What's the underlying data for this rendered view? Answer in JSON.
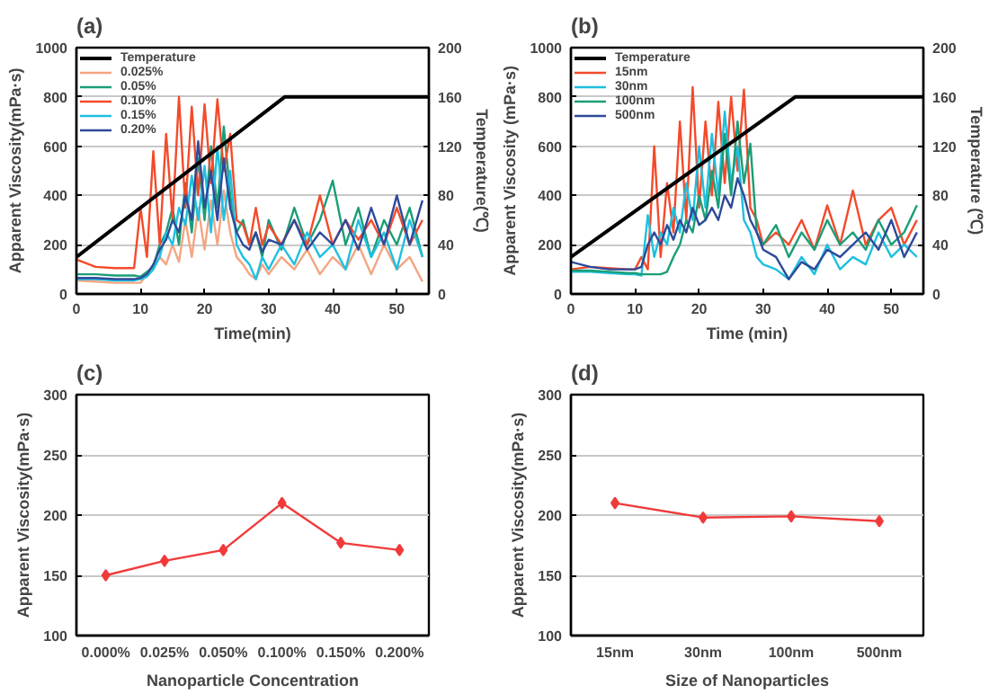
{
  "chart_data": [
    {
      "type": "line",
      "title": "(a)",
      "xlabel": "Time(min)",
      "ylabel": "Apparent Viscosity(mPa·s)",
      "y2label": "Temperature(℃)",
      "xlim": [
        0,
        55
      ],
      "xticks": [
        0,
        10,
        20,
        30,
        40,
        50
      ],
      "ylim": [
        0,
        1000
      ],
      "yticks": [
        0,
        200,
        400,
        600,
        800,
        1000
      ],
      "y2lim": [
        0,
        200
      ],
      "y2ticks": [
        0,
        40,
        80,
        120,
        160,
        200
      ],
      "grid": "y",
      "legend": "top left",
      "x": [
        0,
        3,
        6,
        9,
        10,
        11,
        12,
        13,
        14,
        15,
        16,
        17,
        18,
        19,
        20,
        21,
        22,
        23,
        24,
        25,
        26,
        27,
        28,
        29,
        30,
        32,
        34,
        36,
        38,
        40,
        42,
        44,
        46,
        48,
        50,
        52,
        54
      ],
      "series": [
        {
          "name": "Temperature",
          "color": "#000000",
          "axis": "y2",
          "x": [
            0,
            32.5,
            55
          ],
          "values": [
            30,
            160,
            160
          ]
        },
        {
          "name": "0.025%",
          "color": "#f4a582",
          "values": [
            55,
            50,
            45,
            45,
            45,
            80,
            null,
            150,
            120,
            200,
            130,
            300,
            150,
            350,
            180,
            380,
            200,
            420,
            250,
            150,
            120,
            80,
            60,
            120,
            80,
            150,
            100,
            180,
            80,
            150,
            100,
            200,
            80,
            200,
            100,
            150,
            50
          ]
        },
        {
          "name": "0.05%",
          "color": "#1a9e77",
          "values": [
            80,
            80,
            75,
            75,
            70,
            90,
            110,
            200,
            250,
            350,
            200,
            450,
            250,
            550,
            300,
            600,
            350,
            680,
            400,
            250,
            300,
            200,
            250,
            150,
            300,
            180,
            350,
            200,
            300,
            460,
            200,
            350,
            150,
            300,
            200,
            350,
            150
          ]
        },
        {
          "name": "0.10%",
          "color": "#f44a2a",
          "values": [
            140,
            110,
            105,
            105,
            350,
            150,
            580,
            200,
            650,
            300,
            800,
            350,
            760,
            400,
            770,
            450,
            790,
            500,
            650,
            300,
            280,
            200,
            350,
            200,
            280,
            200,
            300,
            200,
            400,
            200,
            300,
            220,
            300,
            200,
            350,
            200,
            300
          ]
        },
        {
          "name": "0.15%",
          "color": "#1ec0e0",
          "values": [
            60,
            60,
            55,
            55,
            60,
            70,
            100,
            150,
            250,
            200,
            350,
            280,
            480,
            300,
            520,
            250,
            600,
            300,
            500,
            200,
            150,
            120,
            60,
            150,
            100,
            200,
            120,
            250,
            150,
            200,
            100,
            300,
            150,
            250,
            100,
            300,
            150
          ]
        },
        {
          "name": "0.20%",
          "color": "#2e4a9a",
          "values": [
            65,
            65,
            60,
            60,
            65,
            80,
            120,
            180,
            220,
            300,
            250,
            400,
            300,
            620,
            350,
            500,
            300,
            550,
            350,
            250,
            200,
            180,
            250,
            170,
            220,
            200,
            300,
            180,
            250,
            200,
            300,
            180,
            350,
            200,
            400,
            200,
            380
          ]
        }
      ]
    },
    {
      "type": "line",
      "title": "(b)",
      "xlabel": "Time (min)",
      "ylabel": "Apparent Viscosity (mPa·s)",
      "y2label": "Temperature (℃)",
      "xlim": [
        0,
        55
      ],
      "xticks": [
        0,
        10,
        20,
        30,
        40,
        50
      ],
      "ylim": [
        0,
        1000
      ],
      "yticks": [
        0,
        200,
        400,
        600,
        800,
        1000
      ],
      "y2lim": [
        0,
        200
      ],
      "y2ticks": [
        0,
        40,
        80,
        120,
        160,
        200
      ],
      "grid": "y",
      "legend": "top left",
      "x": [
        0,
        3,
        6,
        9,
        10,
        11,
        12,
        13,
        14,
        15,
        16,
        17,
        18,
        19,
        20,
        21,
        22,
        23,
        24,
        25,
        26,
        27,
        28,
        29,
        30,
        32,
        34,
        36,
        38,
        40,
        42,
        44,
        46,
        48,
        50,
        52,
        54
      ],
      "series": [
        {
          "name": "Temperature",
          "color": "#000000",
          "axis": "y2",
          "x": [
            0,
            35,
            55
          ],
          "values": [
            30,
            160,
            160
          ]
        },
        {
          "name": "15nm",
          "color": "#f44a2a",
          "values": [
            100,
            110,
            null,
            100,
            100,
            150,
            100,
            600,
            150,
            450,
            250,
            700,
            300,
            840,
            350,
            700,
            400,
            780,
            450,
            800,
            500,
            830,
            350,
            300,
            200,
            250,
            200,
            300,
            180,
            360,
            200,
            420,
            200,
            300,
            350,
            200,
            300
          ]
        },
        {
          "name": "30nm",
          "color": "#1ec0e0",
          "values": [
            90,
            90,
            85,
            80,
            80,
            75,
            320,
            150,
            250,
            200,
            350,
            250,
            450,
            300,
            600,
            350,
            650,
            400,
            740,
            450,
            600,
            300,
            250,
            150,
            120,
            100,
            60,
            150,
            80,
            200,
            100,
            150,
            120,
            250,
            150,
            200,
            150
          ]
        },
        {
          "name": "100nm",
          "color": "#1a9e77",
          "values": [
            95,
            95,
            90,
            85,
            85,
            80,
            80,
            80,
            80,
            90,
            150,
            200,
            300,
            250,
            400,
            300,
            500,
            350,
            650,
            400,
            700,
            450,
            610,
            250,
            200,
            280,
            150,
            250,
            180,
            300,
            200,
            250,
            180,
            300,
            200,
            250,
            360
          ]
        },
        {
          "name": "500nm",
          "color": "#2e4a9a",
          "values": [
            130,
            110,
            100,
            100,
            100,
            110,
            200,
            250,
            200,
            280,
            220,
            300,
            250,
            350,
            280,
            300,
            350,
            300,
            400,
            350,
            470,
            400,
            300,
            250,
            180,
            150,
            60,
            130,
            100,
            180,
            150,
            200,
            250,
            180,
            300,
            150,
            250
          ]
        }
      ]
    },
    {
      "type": "line",
      "title": "(c)",
      "xlabel": "Nanoparticle Concentration",
      "ylabel": "Apparent Viscosity(mPa·s)",
      "categories": [
        "0.000%",
        "0.025%",
        "0.050%",
        "0.100%",
        "0.150%",
        "0.200%"
      ],
      "ylim": [
        100,
        300
      ],
      "yticks": [
        100,
        150,
        200,
        250,
        300
      ],
      "grid": "y",
      "marker": "diamond",
      "series": [
        {
          "color": "#f03a3a",
          "values": [
            150,
            162,
            171,
            210,
            177,
            171
          ]
        }
      ]
    },
    {
      "type": "line",
      "title": "(d)",
      "xlabel": "Size of Nanoparticles",
      "ylabel": "Apparent Viscosity(mPa·s)",
      "categories": [
        "15nm",
        "30nm",
        "100nm",
        "500nm"
      ],
      "ylim": [
        100,
        300
      ],
      "yticks": [
        100,
        150,
        200,
        250,
        300
      ],
      "grid": "y",
      "marker": "diamond",
      "series": [
        {
          "color": "#f03a3a",
          "values": [
            210,
            198,
            199,
            195
          ]
        }
      ]
    }
  ]
}
